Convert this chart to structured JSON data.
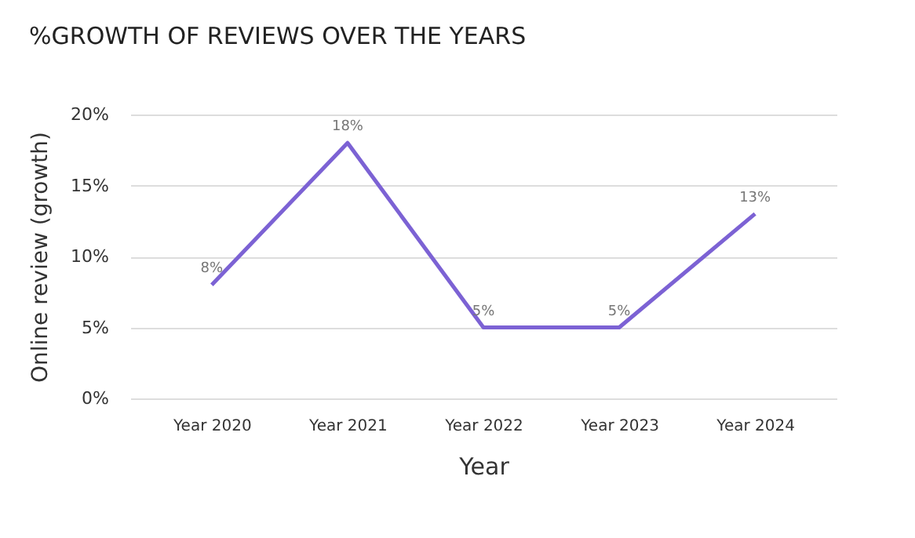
{
  "chart_data": {
    "type": "line",
    "title": "%GROWTH OF REVIEWS OVER THE YEARS",
    "xlabel": "Year",
    "ylabel": "Online review (growth)",
    "categories": [
      "Year 2020",
      "Year 2021",
      "Year 2022",
      "Year 2023",
      "Year 2024"
    ],
    "values": [
      8,
      18,
      5,
      5,
      13
    ],
    "color": "#7c62d4",
    "value_labels": [
      "8%",
      "18%",
      "5%",
      "5%",
      "13%"
    ],
    "ylim": [
      0,
      20
    ],
    "yticks": [
      {
        "value": 0,
        "label": "0%"
      },
      {
        "value": 5,
        "label": "5%"
      },
      {
        "value": 10,
        "label": "10%"
      },
      {
        "value": 15,
        "label": "15%"
      },
      {
        "value": 20,
        "label": "20%"
      }
    ],
    "grid": "y",
    "marker": "none",
    "line_style": "solid"
  }
}
